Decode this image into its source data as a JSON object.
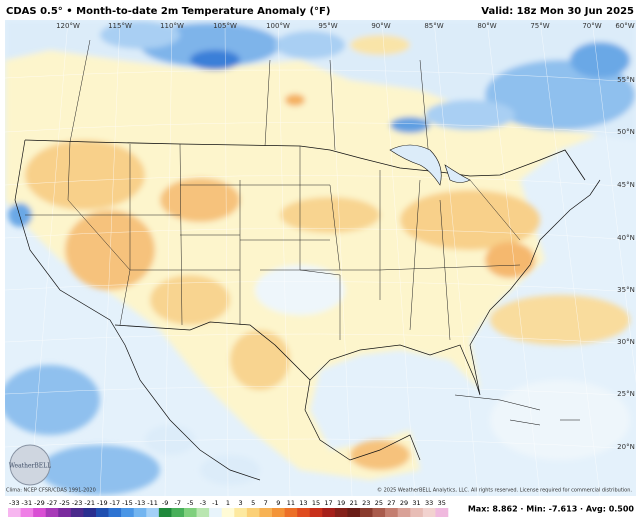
{
  "header": {
    "title": "CDAS 0.5° • Month-to-date 2m Temperature Anomaly (°F)",
    "valid": "Valid: 18z Mon 30 Jun 2025"
  },
  "map": {
    "longitude_labels": [
      "120°W",
      "115°W",
      "110°W",
      "105°W",
      "100°W",
      "95°W",
      "90°W",
      "85°W",
      "80°W",
      "75°W",
      "70°W",
      "60°W"
    ],
    "latitude_labels": [
      "55°N",
      "50°N",
      "45°N",
      "40°N",
      "35°N",
      "30°N",
      "25°N",
      "20°N"
    ]
  },
  "footer": {
    "climatology": "Clima: NCEP CFSR/CDAS 1991-2020",
    "copyright": "© 2025 WeatherBELL Analytics, LLC. All rights reserved. License required for commercial distribution.",
    "stats": "Max: 8.862 · Min: -7.613 · Avg: 0.500",
    "logo": "WeatherBELL"
  },
  "colorbar": {
    "ticks": [
      -33,
      -31,
      -29,
      -27,
      -25,
      -23,
      -21,
      -19,
      -17,
      -15,
      -13,
      -11,
      -9,
      -7,
      -5,
      -3,
      -1,
      1,
      3,
      5,
      7,
      9,
      11,
      13,
      15,
      17,
      19,
      21,
      23,
      25,
      27,
      29,
      31,
      33,
      35
    ],
    "colors": [
      "#f7b6f0",
      "#ef7fe6",
      "#d94fd4",
      "#a83ab8",
      "#7a2a9e",
      "#4b2a8c",
      "#2a2f8f",
      "#1f4fb0",
      "#2d73d2",
      "#4a96e6",
      "#73b5f0",
      "#a3d0f7",
      "#1f8a3c",
      "#48b05a",
      "#7fd07d",
      "#b9e6b0",
      "#e8f4fb",
      "#fffbd6",
      "#fde9a0",
      "#fbd077",
      "#f7b254",
      "#f39438",
      "#ec7028",
      "#df4c1f",
      "#c8301b",
      "#a6201a",
      "#842019",
      "#6a1c16",
      "#8a3b2e",
      "#a95b4c",
      "#c47e70",
      "#d9a197",
      "#e8bdb6",
      "#f2d2cf",
      "#f0b9de"
    ]
  }
}
